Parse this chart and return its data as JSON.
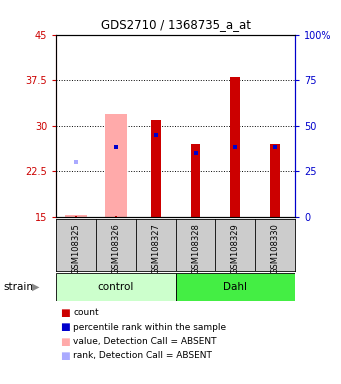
{
  "title": "GDS2710 / 1368735_a_at",
  "samples": [
    "GSM108325",
    "GSM108326",
    "GSM108327",
    "GSM108328",
    "GSM108329",
    "GSM108330"
  ],
  "ylim_left": [
    15,
    45
  ],
  "ylim_right": [
    0,
    100
  ],
  "yticks_left": [
    15,
    22.5,
    30,
    37.5,
    45
  ],
  "yticks_left_labels": [
    "15",
    "22.5",
    "30",
    "37.5",
    "45"
  ],
  "yticks_right": [
    0,
    25,
    50,
    75,
    100
  ],
  "yticks_right_labels": [
    "0",
    "25",
    "50",
    "75",
    "100%"
  ],
  "bar_bottom": 15,
  "red_bars": [
    null,
    null,
    31.0,
    27.0,
    38.0,
    27.0
  ],
  "pink_bars": [
    15.3,
    32.0,
    null,
    null,
    null,
    null
  ],
  "blue_squares": [
    null,
    26.5,
    28.5,
    25.5,
    26.5,
    26.5
  ],
  "lightblue_squares": [
    24.0,
    null,
    null,
    null,
    null,
    null
  ],
  "colors": {
    "red": "#cc0000",
    "pink": "#ffaaaa",
    "blue": "#0000cc",
    "lightblue": "#aaaaff",
    "control_bg": "#ccffcc",
    "dahl_bg": "#44ee44",
    "bg_plot": "#ffffff",
    "bg_sample": "#cccccc",
    "left_axis": "#cc0000",
    "right_axis": "#0000cc"
  },
  "legend_labels": [
    "count",
    "percentile rank within the sample",
    "value, Detection Call = ABSENT",
    "rank, Detection Call = ABSENT"
  ],
  "legend_colors": [
    "#cc0000",
    "#0000cc",
    "#ffaaaa",
    "#aaaaff"
  ]
}
